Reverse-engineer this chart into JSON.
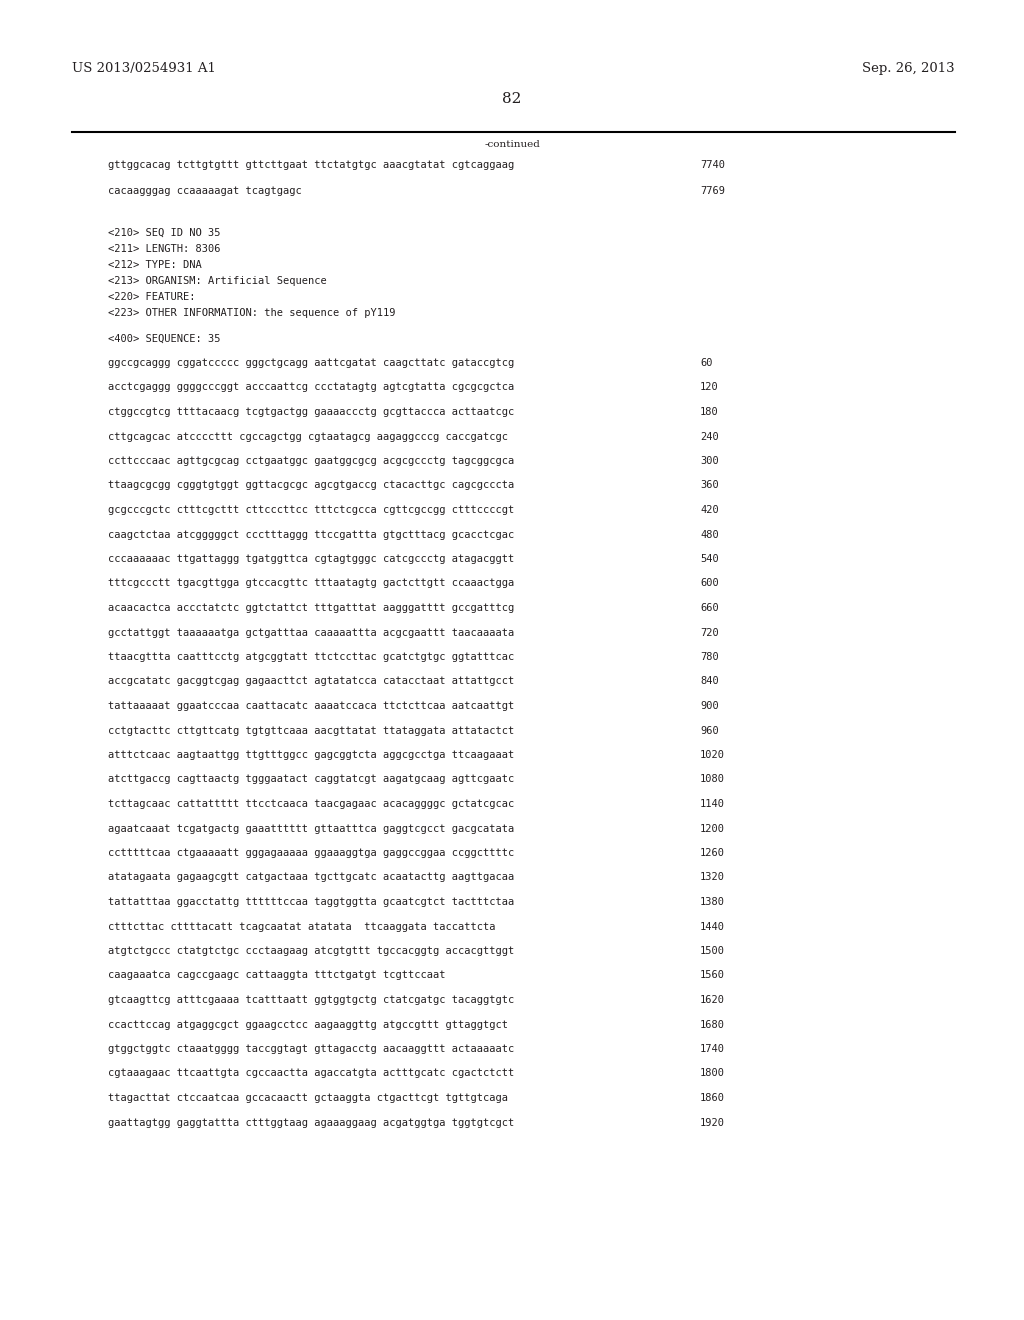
{
  "header_left": "US 2013/0254931 A1",
  "header_right": "Sep. 26, 2013",
  "page_number": "82",
  "continued_label": "-continued",
  "background_color": "#ffffff",
  "text_color": "#231f20",
  "font_size_header": 9.5,
  "font_size_body": 7.5,
  "font_size_page": 11,
  "lines_before_divider": [
    [
      "gttggcacag tcttgtgttt gttcttgaat ttctatgtgc aaacgtatat cgtcaggaag",
      "7740"
    ],
    [
      "cacaagggag ccaaaaagat tcagtgagc",
      "7769"
    ]
  ],
  "metadata_lines": [
    "<210> SEQ ID NO 35",
    "<211> LENGTH: 8306",
    "<212> TYPE: DNA",
    "<213> ORGANISM: Artificial Sequence",
    "<220> FEATURE:",
    "<223> OTHER INFORMATION: the sequence of pY119",
    "",
    "<400> SEQUENCE: 35"
  ],
  "sequence_lines": [
    [
      "ggccgcaggg cggatccccc gggctgcagg aattcgatat caagcttatc gataccgtcg",
      "60"
    ],
    [
      "acctcgaggg ggggcccggt acccaattcg ccctatagtg agtcgtatta cgcgcgctca",
      "120"
    ],
    [
      "ctggccgtcg ttttacaacg tcgtgactgg gaaaaccctg gcgttaccca acttaatcgc",
      "180"
    ],
    [
      "cttgcagcac atccccttt cgccagctgg cgtaatagcg aagaggcccg caccgatcgc",
      "240"
    ],
    [
      "ccttcccaac agttgcgcag cctgaatggc gaatggcgcg acgcgccctg tagcggcgca",
      "300"
    ],
    [
      "ttaagcgcgg cgggtgtggt ggttacgcgc agcgtgaccg ctacacttgc cagcgcccta",
      "360"
    ],
    [
      "gcgcccgctc ctttcgcttt cttcccttcc tttctcgcca cgttcgccgg ctttccccgt",
      "420"
    ],
    [
      "caagctctaa atcgggggct ccctttaggg ttccgattta gtgctttacg gcacctcgac",
      "480"
    ],
    [
      "cccaaaaaac ttgattaggg tgatggttca cgtagtgggc catcgccctg atagacggtt",
      "540"
    ],
    [
      "tttcgccctt tgacgttgga gtccacgttc tttaatagtg gactcttgtt ccaaactgga",
      "600"
    ],
    [
      "acaacactca accctatctc ggtctattct tttgatttat aagggatttt gccgatttcg",
      "660"
    ],
    [
      "gcctattggt taaaaaatga gctgatttaa caaaaattta acgcgaattt taacaaaata",
      "720"
    ],
    [
      "ttaacgttta caatttcctg atgcggtatt ttctccttac gcatctgtgc ggtatttcac",
      "780"
    ],
    [
      "accgcatatc gacggtcgag gagaacttct agtatatcca catacctaat attattgcct",
      "840"
    ],
    [
      "tattaaaaat ggaatcccaa caattacatc aaaatccaca ttctcttcaa aatcaattgt",
      "900"
    ],
    [
      "cctgtacttc cttgttcatg tgtgttcaaa aacgttatat ttataggata attatactct",
      "960"
    ],
    [
      "atttctcaac aagtaattgg ttgtttggcc gagcggtcta aggcgcctga ttcaagaaat",
      "1020"
    ],
    [
      "atcttgaccg cagttaactg tgggaatact caggtatcgt aagatgcaag agttcgaatc",
      "1080"
    ],
    [
      "tcttagcaac cattattttt ttcctcaaca taacgagaac acacaggggc gctatcgcac",
      "1140"
    ],
    [
      "agaatcaaat tcgatgactg gaaatttttt gttaatttca gaggtcgcct gacgcatata",
      "1200"
    ],
    [
      "cctttttcaa ctgaaaaatt gggagaaaaa ggaaaggtga gaggccggaa ccggcttttc",
      "1260"
    ],
    [
      "atatagaata gagaagcgtt catgactaaa tgcttgcatc acaatacttg aagttgacaa",
      "1320"
    ],
    [
      "tattatttaa ggacctattg ttttttccaa taggtggtta gcaatcgtct tactttctaa",
      "1380"
    ],
    [
      "ctttcttac cttttacatt tcagcaatat atatata  ttcaaggata taccattcta",
      "1440"
    ],
    [
      "atgtctgccc ctatgtctgc ccctaagaag atcgtgttt tgccacggtg accacgttggt",
      "1500"
    ],
    [
      "caagaaatca cagccgaagc cattaaggta tttctgatgt tcgttccaat",
      "1560"
    ],
    [
      "gtcaagttcg atttcgaaaa tcatttaatt ggtggtgctg ctatcgatgc tacaggtgtc",
      "1620"
    ],
    [
      "ccacttccag atgaggcgct ggaagcctcc aagaaggttg atgccgttt gttaggtgct",
      "1680"
    ],
    [
      "gtggctggtc ctaaatgggg taccggtagt gttagacctg aacaaggttt actaaaaatc",
      "1740"
    ],
    [
      "cgtaaagaac ttcaattgta cgccaactta agaccatgta actttgcatc cgactctctt",
      "1800"
    ],
    [
      "ttagacttat ctccaatcaa gccacaactt gctaaggta ctgacttcgt tgttgtcaga",
      "1860"
    ],
    [
      "gaattagtgg gaggtattta ctttggtaag agaaaggaag acgatggtga tggtgtcgct",
      "1920"
    ]
  ]
}
